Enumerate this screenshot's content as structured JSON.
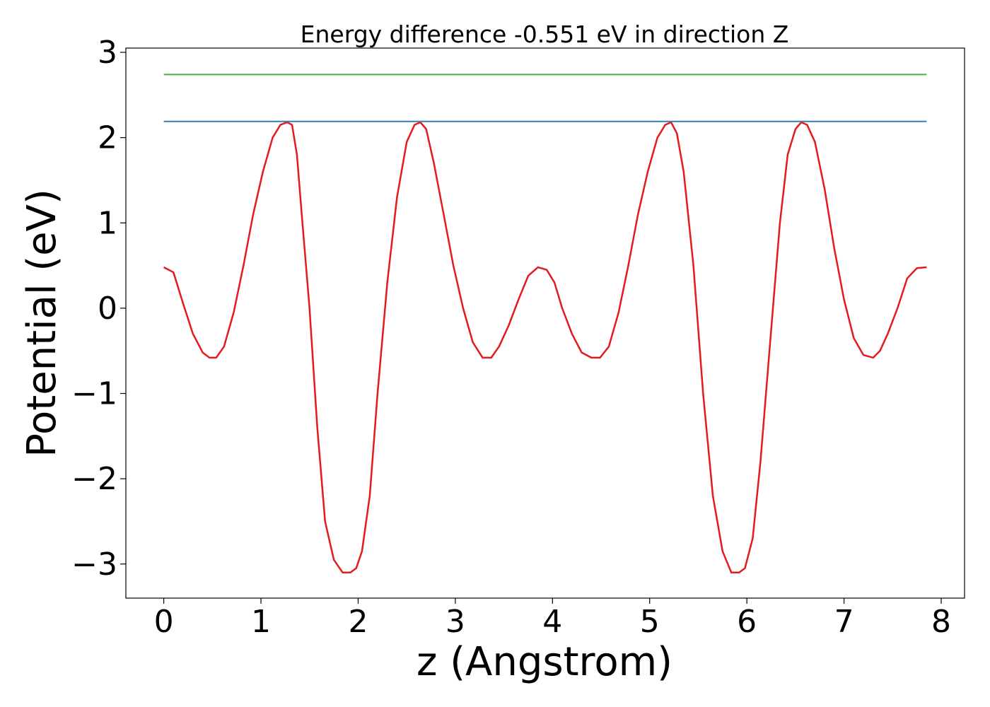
{
  "chart_data": {
    "type": "line",
    "title": "Energy difference -0.551 eV in direction Z",
    "xlabel": "z (Angstrom)",
    "ylabel": "Potential (eV)",
    "xlim": [
      -0.39,
      8.24
    ],
    "ylim": [
      -3.4,
      3.05
    ],
    "x_ticks": [
      0,
      1,
      2,
      3,
      4,
      5,
      6,
      7,
      8
    ],
    "x_tick_labels": [
      "0",
      "1",
      "2",
      "3",
      "4",
      "5",
      "6",
      "7",
      "8"
    ],
    "y_ticks": [
      -3,
      -2,
      -1,
      0,
      1,
      2,
      3
    ],
    "y_tick_labels": [
      "−3",
      "−2",
      "−1",
      "0",
      "1",
      "2",
      "3"
    ],
    "grid": false,
    "colors": {
      "potential": "#e41a1c",
      "max_line": "#377eb8",
      "upper_line": "#4daf4a"
    },
    "series": [
      {
        "x": [
          0.0,
          0.1,
          0.2,
          0.3,
          0.4,
          0.47,
          0.54,
          0.62,
          0.72,
          0.82,
          0.92,
          1.02,
          1.12,
          1.2,
          1.27,
          1.32,
          1.37,
          1.42,
          1.5,
          1.58,
          1.66,
          1.75,
          1.84,
          1.92,
          1.98,
          2.04,
          2.12,
          2.2,
          2.3,
          2.4,
          2.5,
          2.58,
          2.64,
          2.7,
          2.78,
          2.88,
          2.98,
          3.08,
          3.18,
          3.28,
          3.37,
          3.45,
          3.55,
          3.65,
          3.75,
          3.85,
          3.94,
          4.02,
          4.1,
          4.2,
          4.3,
          4.4,
          4.49,
          4.58,
          4.68,
          4.78,
          4.88,
          4.98,
          5.08,
          5.16,
          5.22,
          5.28,
          5.35,
          5.45,
          5.55,
          5.65,
          5.75,
          5.84,
          5.92,
          5.98,
          6.06,
          6.14,
          6.24,
          6.34,
          6.42,
          6.5,
          6.56,
          6.62,
          6.7,
          6.8,
          6.9,
          7.0,
          7.1,
          7.2,
          7.3,
          7.37,
          7.45,
          7.55,
          7.65,
          7.75,
          7.85
        ],
        "y": [
          0.48,
          0.42,
          0.05,
          -0.3,
          -0.52,
          -0.58,
          -0.58,
          -0.45,
          -0.05,
          0.5,
          1.1,
          1.6,
          2.0,
          2.15,
          2.18,
          2.15,
          1.8,
          1.1,
          0.0,
          -1.4,
          -2.5,
          -2.95,
          -3.1,
          -3.1,
          -3.05,
          -2.85,
          -2.2,
          -1.0,
          0.3,
          1.3,
          1.95,
          2.15,
          2.18,
          2.1,
          1.7,
          1.1,
          0.5,
          0.0,
          -0.4,
          -0.58,
          -0.58,
          -0.45,
          -0.2,
          0.1,
          0.38,
          0.48,
          0.45,
          0.3,
          0.0,
          -0.3,
          -0.52,
          -0.58,
          -0.58,
          -0.45,
          -0.05,
          0.5,
          1.1,
          1.6,
          2.0,
          2.15,
          2.18,
          2.05,
          1.6,
          0.5,
          -1.0,
          -2.2,
          -2.85,
          -3.1,
          -3.1,
          -3.05,
          -2.7,
          -1.8,
          -0.4,
          1.0,
          1.8,
          2.1,
          2.18,
          2.15,
          1.95,
          1.4,
          0.7,
          0.1,
          -0.35,
          -0.55,
          -0.58,
          -0.5,
          -0.3,
          0.0,
          0.35,
          0.47,
          0.48
        ]
      },
      {
        "x": [
          0.0,
          7.85
        ],
        "y": [
          2.19,
          2.19
        ]
      },
      {
        "x": [
          0.0,
          7.85
        ],
        "y": [
          2.74,
          2.74
        ]
      }
    ]
  }
}
